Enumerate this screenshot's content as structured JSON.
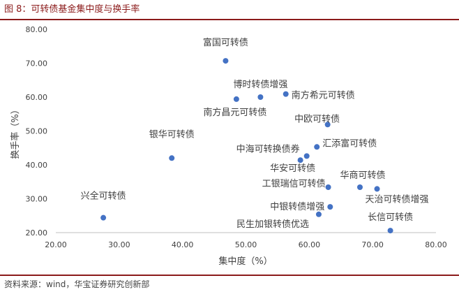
{
  "figure": {
    "title": "图 8：可转债基金集中度与换手率",
    "source": "资料来源：wind，华宝证券研究创新部",
    "accent_color": "#8b1a1a"
  },
  "chart_data": {
    "type": "scatter",
    "title": "",
    "xlabel": "集中度（%）",
    "ylabel": "换手率（%）",
    "xlim": [
      20,
      80
    ],
    "ylim": [
      20,
      80
    ],
    "x_ticks": [
      "20.00",
      "30.00",
      "40.00",
      "50.00",
      "60.00",
      "70.00",
      "80.00"
    ],
    "y_ticks": [
      "20.00",
      "30.00",
      "40.00",
      "50.00",
      "60.00",
      "70.00",
      "80.00"
    ],
    "grid": false,
    "legend": "none",
    "marker_color": "#4472c4",
    "points": [
      {
        "label": "富国可转债",
        "x": 46.8,
        "y": 70.7
      },
      {
        "label": "博时转债增强",
        "x": 52.3,
        "y": 60.0
      },
      {
        "label": "南方希元可转债",
        "x": 56.3,
        "y": 60.9
      },
      {
        "label": "南方昌元可转债",
        "x": 48.5,
        "y": 59.4
      },
      {
        "label": "中欧可转债",
        "x": 62.9,
        "y": 51.9
      },
      {
        "label": "汇添富可转债",
        "x": 61.2,
        "y": 45.3
      },
      {
        "label": "中海可转换债券",
        "x": 59.6,
        "y": 42.6
      },
      {
        "label": "华安可转债",
        "x": 58.6,
        "y": 41.4
      },
      {
        "label": "银华可转债",
        "x": 38.3,
        "y": 42.0
      },
      {
        "label": "工银瑞信可转债",
        "x": 63.0,
        "y": 33.4
      },
      {
        "label": "华商可转债",
        "x": 68.0,
        "y": 33.4
      },
      {
        "label": "天治可转债增强",
        "x": 70.7,
        "y": 32.9
      },
      {
        "label": "中银转债增强",
        "x": 63.3,
        "y": 27.6
      },
      {
        "label": "民生加银转债优选",
        "x": 61.5,
        "y": 25.4
      },
      {
        "label": "兴全可转债",
        "x": 27.5,
        "y": 24.4
      },
      {
        "label": "长信可转债",
        "x": 72.8,
        "y": 20.6
      }
    ]
  }
}
